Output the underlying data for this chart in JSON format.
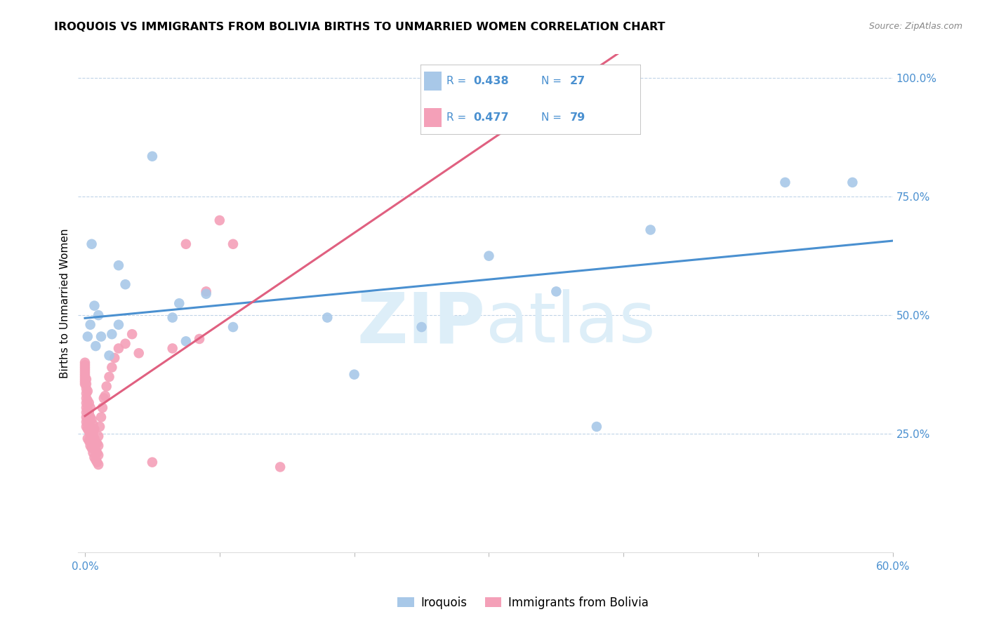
{
  "title": "IROQUOIS VS IMMIGRANTS FROM BOLIVIA BIRTHS TO UNMARRIED WOMEN CORRELATION CHART",
  "source": "Source: ZipAtlas.com",
  "ylabel": "Births to Unmarried Women",
  "xlabel_ticks": [
    "0.0%",
    "",
    "",
    "",
    "",
    "",
    "60.0%"
  ],
  "xlabel_vals": [
    0.0,
    0.1,
    0.2,
    0.3,
    0.4,
    0.5,
    0.6
  ],
  "ylabel_ticks_right": [
    "100.0%",
    "75.0%",
    "50.0%",
    "25.0%",
    ""
  ],
  "ylabel_vals": [
    1.0,
    0.75,
    0.5,
    0.25,
    0.0
  ],
  "xlim": [
    -0.005,
    0.6
  ],
  "ylim": [
    0.0,
    1.05
  ],
  "color_iroquois": "#a8c8e8",
  "color_bolivia": "#f4a0b8",
  "trendline_color_iroquois": "#4a90d0",
  "trendline_color_bolivia": "#e06080",
  "watermark_color": "#ddeef8",
  "iroquois_x": [
    0.002,
    0.004,
    0.005,
    0.007,
    0.008,
    0.01,
    0.012,
    0.018,
    0.02,
    0.025,
    0.025,
    0.03,
    0.05,
    0.065,
    0.07,
    0.075,
    0.09,
    0.11,
    0.18,
    0.2,
    0.25,
    0.3,
    0.35,
    0.38,
    0.42,
    0.52,
    0.57
  ],
  "iroquois_y": [
    0.455,
    0.48,
    0.65,
    0.52,
    0.435,
    0.5,
    0.455,
    0.415,
    0.46,
    0.605,
    0.48,
    0.565,
    0.835,
    0.495,
    0.525,
    0.445,
    0.545,
    0.475,
    0.495,
    0.375,
    0.475,
    0.625,
    0.55,
    0.265,
    0.68,
    0.78,
    0.78
  ],
  "bolivia_x": [
    0.0,
    0.0,
    0.0,
    0.0,
    0.0,
    0.0,
    0.0,
    0.0,
    0.0,
    0.0,
    0.001,
    0.001,
    0.001,
    0.001,
    0.001,
    0.001,
    0.001,
    0.001,
    0.001,
    0.001,
    0.001,
    0.002,
    0.002,
    0.002,
    0.002,
    0.002,
    0.002,
    0.003,
    0.003,
    0.003,
    0.003,
    0.003,
    0.004,
    0.004,
    0.004,
    0.004,
    0.004,
    0.005,
    0.005,
    0.005,
    0.005,
    0.006,
    0.006,
    0.006,
    0.006,
    0.007,
    0.007,
    0.007,
    0.007,
    0.008,
    0.008,
    0.009,
    0.009,
    0.009,
    0.01,
    0.01,
    0.01,
    0.01,
    0.011,
    0.012,
    0.013,
    0.014,
    0.015,
    0.016,
    0.018,
    0.02,
    0.022,
    0.025,
    0.03,
    0.035,
    0.04,
    0.05,
    0.065,
    0.075,
    0.085,
    0.09,
    0.1,
    0.11,
    0.145
  ],
  "bolivia_y": [
    0.355,
    0.36,
    0.365,
    0.37,
    0.375,
    0.38,
    0.385,
    0.39,
    0.395,
    0.4,
    0.265,
    0.275,
    0.285,
    0.295,
    0.305,
    0.315,
    0.325,
    0.335,
    0.345,
    0.355,
    0.365,
    0.24,
    0.26,
    0.28,
    0.3,
    0.32,
    0.34,
    0.235,
    0.255,
    0.275,
    0.295,
    0.315,
    0.225,
    0.245,
    0.265,
    0.285,
    0.305,
    0.22,
    0.24,
    0.26,
    0.28,
    0.21,
    0.23,
    0.25,
    0.27,
    0.2,
    0.22,
    0.24,
    0.26,
    0.195,
    0.215,
    0.19,
    0.21,
    0.23,
    0.185,
    0.205,
    0.225,
    0.245,
    0.265,
    0.285,
    0.305,
    0.325,
    0.33,
    0.35,
    0.37,
    0.39,
    0.41,
    0.43,
    0.44,
    0.46,
    0.42,
    0.19,
    0.43,
    0.65,
    0.45,
    0.55,
    0.7,
    0.65,
    0.18
  ]
}
